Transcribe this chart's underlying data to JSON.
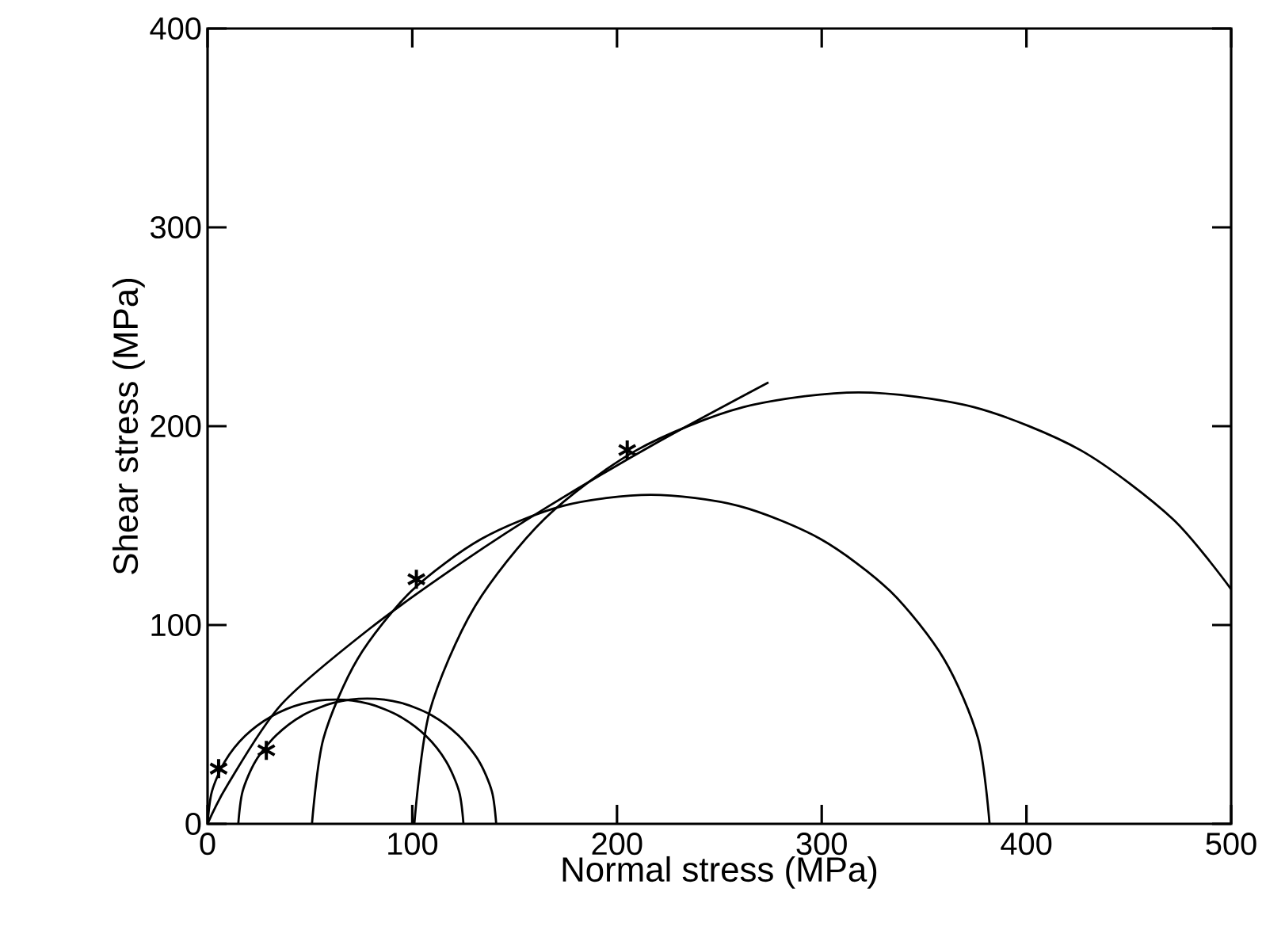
{
  "chart_data": {
    "type": "line",
    "xlabel": "Normal stress (MPa)",
    "ylabel": "Shear stress (MPa)",
    "xlim": [
      0,
      500
    ],
    "ylim": [
      0,
      400
    ],
    "xticks": [
      0,
      100,
      200,
      300,
      400,
      500
    ],
    "yticks": [
      0,
      100,
      200,
      300,
      400
    ],
    "grid": false,
    "marker": "none",
    "line_style": "solid",
    "series": [
      {
        "color": "#000000",
        "x": [
          0,
          2.1,
          8.4,
          18.3,
          31.3,
          46.3,
          62.5,
          78.7,
          93.8,
          106.7,
          116.6,
          122.9,
          125
        ],
        "values": [
          0,
          16.2,
          31.3,
          44.2,
          54.1,
          60.4,
          62.5,
          60.4,
          54.1,
          44.2,
          31.3,
          16.2,
          0
        ]
      },
      {
        "color": "#000000",
        "x": [
          15,
          17.1,
          23.4,
          33.5,
          46.5,
          61.7,
          78,
          94.3,
          109.5,
          122.5,
          132.6,
          138.9,
          141
        ],
        "values": [
          0,
          16.3,
          31.5,
          44.5,
          54.6,
          60.9,
          63,
          60.9,
          54.6,
          44.5,
          31.5,
          16.3,
          0
        ]
      },
      {
        "color": "#000000",
        "x": [
          51,
          56.6,
          73.2,
          99.5,
          133.8,
          173.6,
          216.5,
          259.4,
          299.3,
          333.5,
          359.8,
          376.4,
          382
        ],
        "values": [
          0,
          42.9,
          82.8,
          117,
          143.3,
          159.9,
          165.5,
          159.9,
          143.3,
          117,
          82.8,
          42.9,
          0
        ]
      },
      {
        "color": "#000000",
        "x": [
          101,
          108.4,
          130.1,
          164.6,
          209.5,
          261.8,
          318,
          374.2,
          426.5,
          471.4,
          500
        ],
        "values": [
          0,
          56.2,
          108.5,
          153.4,
          187.9,
          209.6,
          217,
          209.6,
          187.9,
          153.4,
          118
        ]
      },
      {
        "color": "#000000",
        "x": [
          0,
          10,
          36,
          79,
          125,
          167,
          220,
          274
        ],
        "values": [
          0,
          20,
          60,
          98,
          132,
          160,
          192,
          222
        ]
      },
      {
        "type": "scatter",
        "marker": "cross",
        "color": "#000000",
        "x": [
          5.4,
          28.7,
          102,
          205
        ],
        "values": [
          27.8,
          37,
          123,
          188
        ]
      }
    ]
  }
}
